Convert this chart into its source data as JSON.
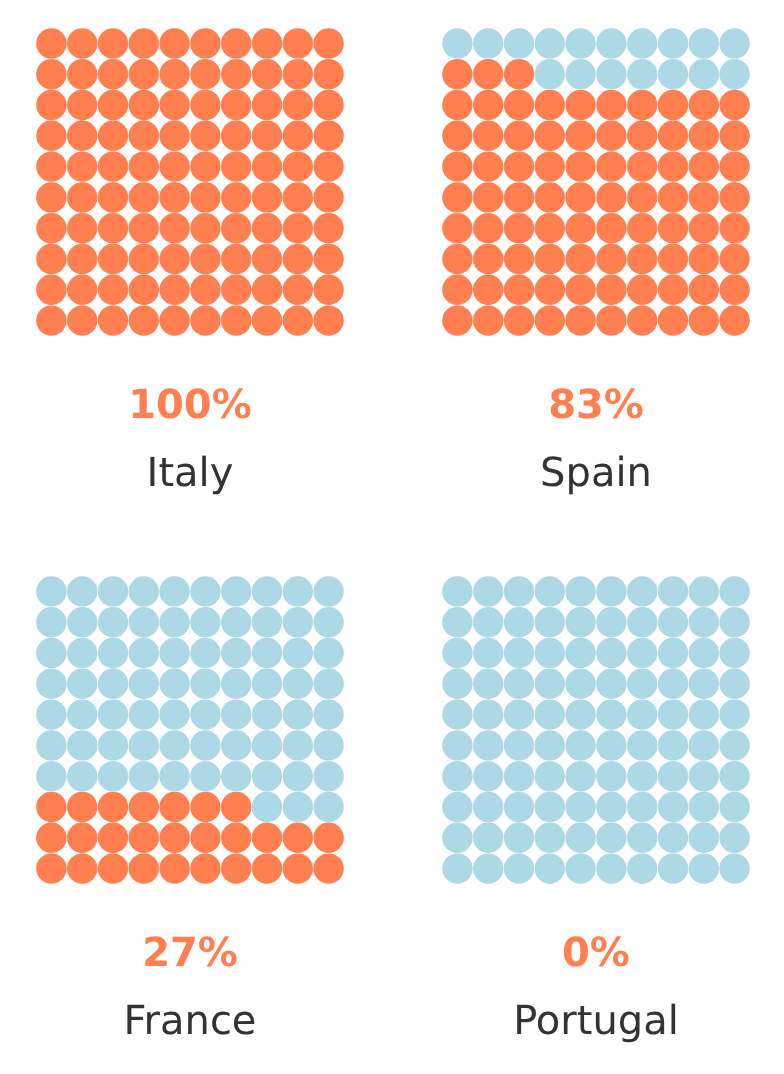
{
  "chart_data": {
    "type": "other",
    "categories": [
      "Italy",
      "Spain",
      "France",
      "Portugal"
    ],
    "values": [
      100,
      83,
      27,
      0
    ],
    "value_labels": [
      "100%",
      "83%",
      "27%",
      "0%"
    ],
    "color": "#ff7f50"
  }
}
